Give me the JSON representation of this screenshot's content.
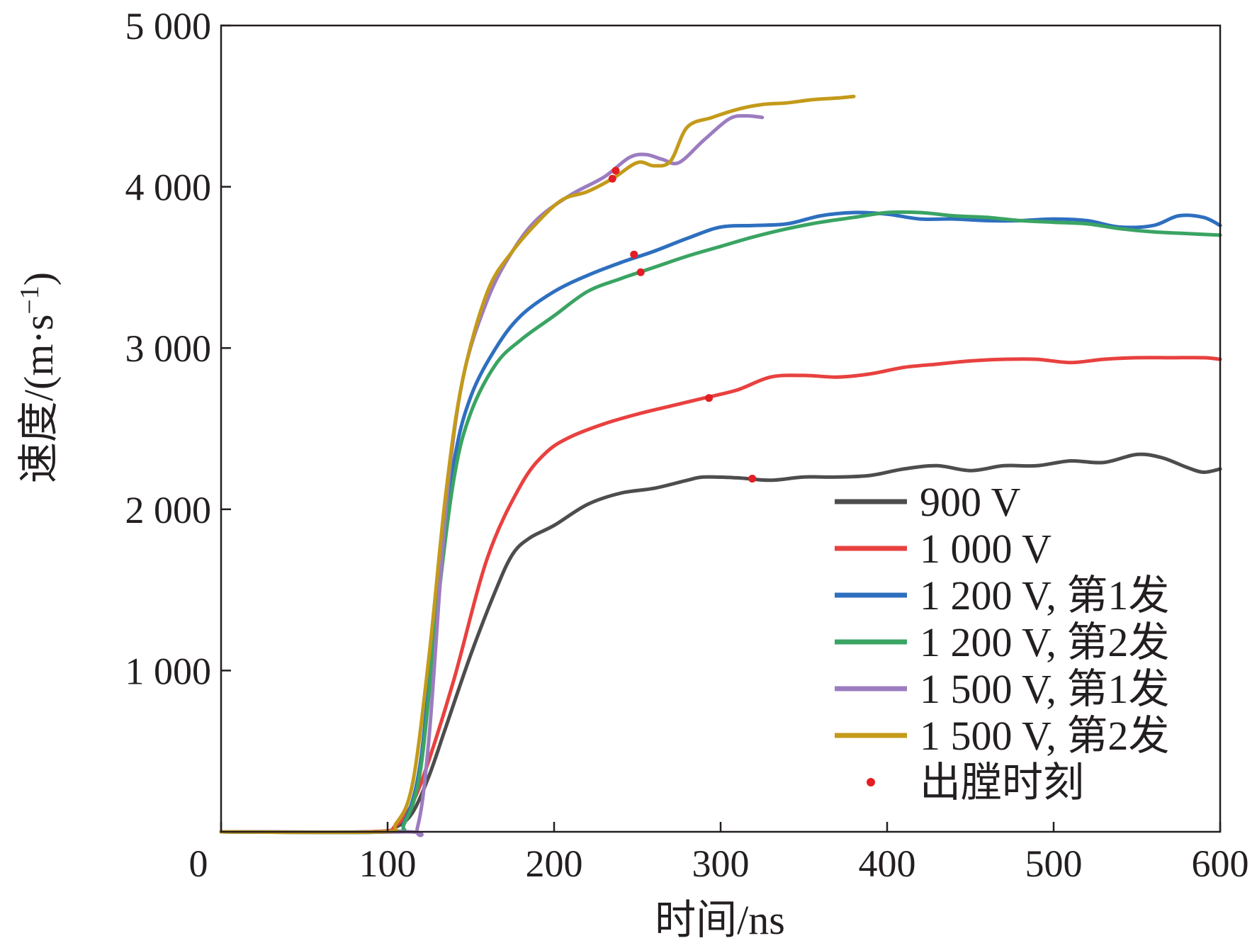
{
  "chart_data": {
    "type": "line",
    "title": "",
    "xlabel": "时间/ns",
    "ylabel": "速度/(m·s",
    "ylabel_sup": "−1",
    "ylabel_close": ")",
    "xlim": [
      0,
      600
    ],
    "ylim": [
      0,
      5000
    ],
    "x_ticks": [
      0,
      100,
      200,
      300,
      400,
      500,
      600
    ],
    "x_tick_labels": [
      "0",
      "100",
      "200",
      "300",
      "400",
      "500",
      "600"
    ],
    "y_ticks": [
      1000,
      2000,
      3000,
      4000,
      5000
    ],
    "y_tick_labels": [
      "1 000",
      "2 000",
      "3 000",
      "4 000",
      "5 000"
    ],
    "grid": false,
    "legend_position": "bottom-right",
    "series": [
      {
        "name": "900 V",
        "color": "#4d4d4d",
        "x": [
          0,
          90,
          105,
          115,
          125,
          135,
          150,
          165,
          175,
          185,
          200,
          220,
          240,
          260,
          280,
          290,
          310,
          330,
          350,
          370,
          390,
          410,
          430,
          450,
          470,
          490,
          510,
          530,
          550,
          565,
          580,
          590,
          600
        ],
        "y": [
          0,
          0,
          30,
          120,
          350,
          650,
          1100,
          1500,
          1720,
          1820,
          1900,
          2030,
          2100,
          2130,
          2180,
          2200,
          2195,
          2180,
          2200,
          2200,
          2210,
          2250,
          2270,
          2240,
          2270,
          2270,
          2300,
          2290,
          2340,
          2320,
          2260,
          2230,
          2250
        ]
      },
      {
        "name": "1 000 V",
        "color": "#e8413f",
        "x": [
          0,
          90,
          105,
          115,
          125,
          140,
          160,
          180,
          195,
          210,
          230,
          250,
          270,
          290,
          310,
          330,
          350,
          370,
          390,
          410,
          430,
          450,
          470,
          490,
          510,
          530,
          550,
          570,
          590,
          600
        ],
        "y": [
          0,
          0,
          40,
          180,
          450,
          950,
          1700,
          2150,
          2350,
          2450,
          2530,
          2590,
          2640,
          2690,
          2740,
          2820,
          2830,
          2820,
          2840,
          2880,
          2900,
          2920,
          2930,
          2930,
          2910,
          2930,
          2940,
          2940,
          2940,
          2930
        ]
      },
      {
        "name": "1 200 V, 第1发",
        "color": "#2e6fbf",
        "x": [
          0,
          100,
          110,
          120,
          130,
          140,
          150,
          165,
          180,
          200,
          220,
          240,
          260,
          280,
          300,
          320,
          340,
          360,
          380,
          400,
          420,
          440,
          460,
          480,
          500,
          520,
          540,
          560,
          575,
          590,
          600
        ],
        "y": [
          0,
          0,
          60,
          450,
          1500,
          2300,
          2700,
          3000,
          3200,
          3350,
          3450,
          3530,
          3600,
          3680,
          3750,
          3760,
          3770,
          3820,
          3840,
          3830,
          3800,
          3800,
          3790,
          3790,
          3800,
          3790,
          3750,
          3760,
          3820,
          3810,
          3760
        ]
      },
      {
        "name": "1 200 V, 第2发",
        "color": "#3aa463",
        "x": [
          0,
          100,
          110,
          120,
          130,
          140,
          150,
          165,
          180,
          200,
          220,
          240,
          260,
          280,
          300,
          320,
          340,
          360,
          380,
          400,
          420,
          440,
          460,
          480,
          500,
          520,
          540,
          560,
          580,
          600
        ],
        "y": [
          0,
          0,
          50,
          400,
          1400,
          2200,
          2600,
          2900,
          3050,
          3200,
          3350,
          3430,
          3500,
          3570,
          3630,
          3690,
          3740,
          3780,
          3810,
          3840,
          3840,
          3820,
          3810,
          3790,
          3780,
          3770,
          3740,
          3720,
          3710,
          3700
        ]
      },
      {
        "name": "1 500 V, 第1发",
        "color": "#9c7cc0",
        "x": [
          0,
          110,
          118,
          125,
          135,
          145,
          160,
          175,
          190,
          210,
          230,
          245,
          255,
          265,
          275,
          290,
          305,
          315,
          325
        ],
        "y": [
          0,
          0,
          30,
          600,
          2000,
          2800,
          3300,
          3600,
          3800,
          3950,
          4060,
          4180,
          4200,
          4170,
          4150,
          4290,
          4420,
          4440,
          4430
        ]
      },
      {
        "name": "1 500 V, 第2发",
        "color": "#c39a1a",
        "x": [
          0,
          95,
          105,
          115,
          125,
          135,
          145,
          160,
          175,
          190,
          205,
          220,
          235,
          250,
          260,
          270,
          280,
          295,
          310,
          325,
          340,
          355,
          370,
          380
        ],
        "y": [
          0,
          0,
          50,
          300,
          1100,
          2100,
          2800,
          3350,
          3600,
          3780,
          3920,
          3970,
          4050,
          4150,
          4130,
          4160,
          4370,
          4430,
          4480,
          4510,
          4520,
          4540,
          4550,
          4560
        ]
      }
    ],
    "markers": {
      "name": "出膛时刻",
      "color": "#e31e24",
      "points": [
        {
          "x": 235,
          "y": 4050
        },
        {
          "x": 237,
          "y": 4100
        },
        {
          "x": 248,
          "y": 3580
        },
        {
          "x": 252,
          "y": 3470
        },
        {
          "x": 293,
          "y": 2690
        },
        {
          "x": 319,
          "y": 2190
        }
      ]
    }
  }
}
